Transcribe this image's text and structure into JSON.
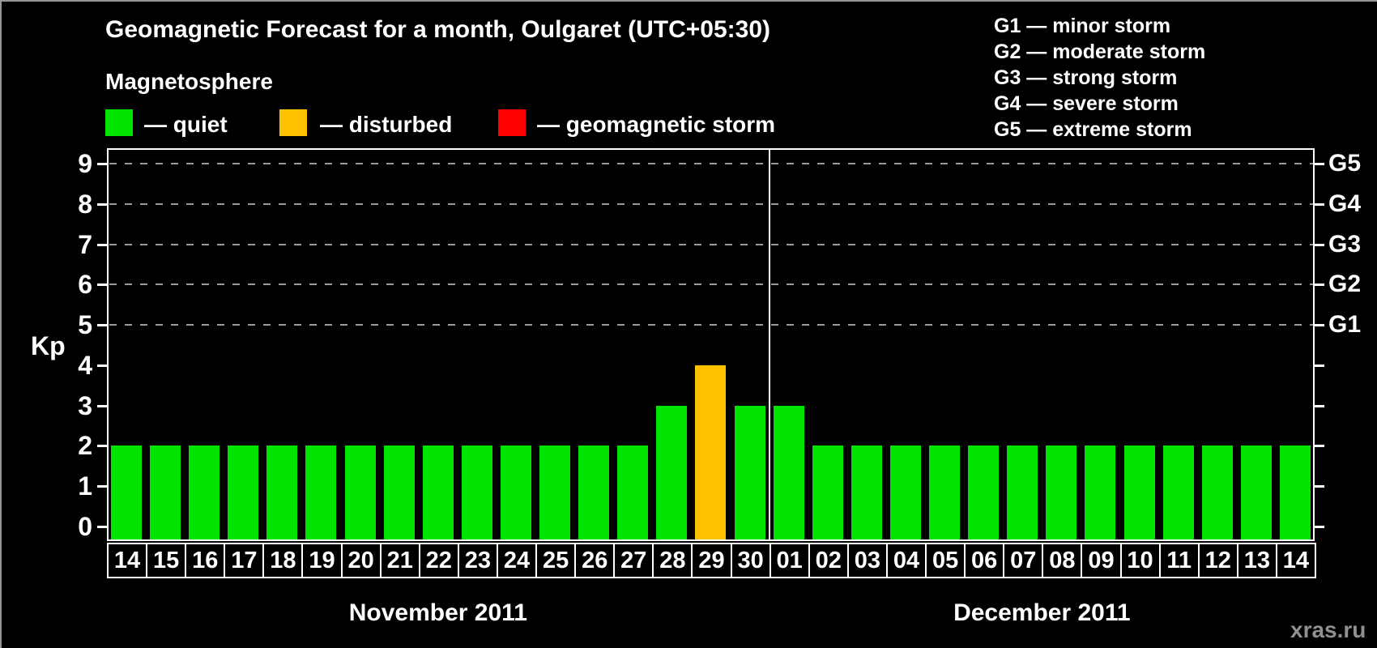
{
  "header": {
    "title": "Geomagnetic Forecast for a month, Oulgaret (UTC+05:30)",
    "subtitle": "Magnetosphere"
  },
  "legend": {
    "items": [
      {
        "name": "quiet",
        "label": "— quiet",
        "color": "#00e400"
      },
      {
        "name": "disturbed",
        "label": "— disturbed",
        "color": "#ffc000"
      },
      {
        "name": "storm",
        "label": "— geomagnetic storm",
        "color": "#ff0000"
      }
    ]
  },
  "g_scale_legend": {
    "items": [
      "G1 — minor storm",
      "G2 — moderate storm",
      "G3 — strong storm",
      "G4 — severe storm",
      "G5 — extreme storm"
    ]
  },
  "watermark": "xras.ru",
  "chart_data": {
    "type": "bar",
    "title": "Geomagnetic Forecast for a month, Oulgaret (UTC+05:30)",
    "ylabel": "Kp",
    "ylim": [
      0,
      9.4
    ],
    "y_ticks": [
      0,
      1,
      2,
      3,
      4,
      5,
      6,
      7,
      8,
      9
    ],
    "grid_levels": [
      5,
      6,
      7,
      8,
      9
    ],
    "grid_color": "#9a9a9a",
    "right_axis": [
      {
        "label": "G1",
        "kp": 5
      },
      {
        "label": "G2",
        "kp": 6
      },
      {
        "label": "G3",
        "kp": 7
      },
      {
        "label": "G4",
        "kp": 8
      },
      {
        "label": "G5",
        "kp": 9
      }
    ],
    "state_colors": {
      "quiet": "#00e400",
      "disturbed": "#ffc000",
      "storm": "#ff0000"
    },
    "months": [
      {
        "label": "November 2011",
        "days": 17
      },
      {
        "label": "December 2011",
        "days": 14
      }
    ],
    "bars": [
      {
        "day": "14",
        "month": "November 2011",
        "kp": 2,
        "state": "quiet"
      },
      {
        "day": "15",
        "month": "November 2011",
        "kp": 2,
        "state": "quiet"
      },
      {
        "day": "16",
        "month": "November 2011",
        "kp": 2,
        "state": "quiet"
      },
      {
        "day": "17",
        "month": "November 2011",
        "kp": 2,
        "state": "quiet"
      },
      {
        "day": "18",
        "month": "November 2011",
        "kp": 2,
        "state": "quiet"
      },
      {
        "day": "19",
        "month": "November 2011",
        "kp": 2,
        "state": "quiet"
      },
      {
        "day": "20",
        "month": "November 2011",
        "kp": 2,
        "state": "quiet"
      },
      {
        "day": "21",
        "month": "November 2011",
        "kp": 2,
        "state": "quiet"
      },
      {
        "day": "22",
        "month": "November 2011",
        "kp": 2,
        "state": "quiet"
      },
      {
        "day": "23",
        "month": "November 2011",
        "kp": 2,
        "state": "quiet"
      },
      {
        "day": "24",
        "month": "November 2011",
        "kp": 2,
        "state": "quiet"
      },
      {
        "day": "25",
        "month": "November 2011",
        "kp": 2,
        "state": "quiet"
      },
      {
        "day": "26",
        "month": "November 2011",
        "kp": 2,
        "state": "quiet"
      },
      {
        "day": "27",
        "month": "November 2011",
        "kp": 2,
        "state": "quiet"
      },
      {
        "day": "28",
        "month": "November 2011",
        "kp": 3,
        "state": "quiet"
      },
      {
        "day": "29",
        "month": "November 2011",
        "kp": 4,
        "state": "disturbed"
      },
      {
        "day": "30",
        "month": "November 2011",
        "kp": 3,
        "state": "quiet"
      },
      {
        "day": "01",
        "month": "December 2011",
        "kp": 3,
        "state": "quiet"
      },
      {
        "day": "02",
        "month": "December 2011",
        "kp": 2,
        "state": "quiet"
      },
      {
        "day": "03",
        "month": "December 2011",
        "kp": 2,
        "state": "quiet"
      },
      {
        "day": "04",
        "month": "December 2011",
        "kp": 2,
        "state": "quiet"
      },
      {
        "day": "05",
        "month": "December 2011",
        "kp": 2,
        "state": "quiet"
      },
      {
        "day": "06",
        "month": "December 2011",
        "kp": 2,
        "state": "quiet"
      },
      {
        "day": "07",
        "month": "December 2011",
        "kp": 2,
        "state": "quiet"
      },
      {
        "day": "08",
        "month": "December 2011",
        "kp": 2,
        "state": "quiet"
      },
      {
        "day": "09",
        "month": "December 2011",
        "kp": 2,
        "state": "quiet"
      },
      {
        "day": "10",
        "month": "December 2011",
        "kp": 2,
        "state": "quiet"
      },
      {
        "day": "11",
        "month": "December 2011",
        "kp": 2,
        "state": "quiet"
      },
      {
        "day": "12",
        "month": "December 2011",
        "kp": 2,
        "state": "quiet"
      },
      {
        "day": "13",
        "month": "December 2011",
        "kp": 2,
        "state": "quiet"
      },
      {
        "day": "14",
        "month": "December 2011",
        "kp": 2,
        "state": "quiet"
      }
    ]
  }
}
